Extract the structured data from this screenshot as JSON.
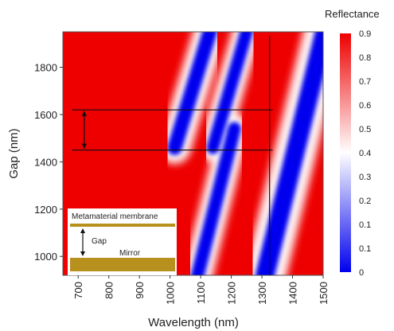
{
  "chart_data": {
    "type": "heatmap",
    "title": "",
    "xlabel": "Wavelength (nm)",
    "ylabel": "Gap (nm)",
    "xlim": [
      650,
      1500
    ],
    "ylim": [
      920,
      1950
    ],
    "x_ticks": [
      "700",
      "800",
      "900",
      "1000",
      "1100",
      "1200",
      "1300",
      "1400",
      "1500"
    ],
    "x_tick_values": [
      700,
      800,
      900,
      1000,
      1100,
      1200,
      1300,
      1400,
      1500
    ],
    "y_ticks": [
      "1000",
      "1200",
      "1400",
      "1600",
      "1800"
    ],
    "y_tick_values": [
      1000,
      1200,
      1400,
      1600,
      1800
    ],
    "colorbar": {
      "title": "Reflectance",
      "labels": [
        "0.9",
        "0.8",
        "0.7",
        "0.6",
        "0.5",
        "0.4",
        "0.3",
        "0.2",
        "0.1",
        "0.1",
        "0"
      ],
      "colors": [
        "#0000ee",
        "#ffffff",
        "#ee0000"
      ],
      "min": 0,
      "max": 0.9
    },
    "colormap": [
      "#0000ee",
      "#ffffff",
      "#ee0000"
    ],
    "resonance_bands": [
      {
        "name": "blue band 1",
        "gap_low": 1460,
        "wavelength_low": 1015,
        "gap_high": 1950,
        "wavelength_high": 1130,
        "width_nm": 48
      },
      {
        "name": "blue band 2",
        "gap_low": 1460,
        "wavelength_low": 1140,
        "gap_high": 1950,
        "wavelength_high": 1250,
        "width_nm": 42
      },
      {
        "name": "blue band 3",
        "gap_low": 920,
        "wavelength_low": 1090,
        "gap_high": 1540,
        "wavelength_high": 1210,
        "width_nm": 44
      },
      {
        "name": "blue band 4",
        "gap_low": 920,
        "wavelength_low": 1310,
        "gap_high": 1950,
        "wavelength_high": 1505,
        "width_nm": 62
      }
    ],
    "annotations": {
      "horizontal_lines_gap": [
        1620,
        1450
      ],
      "vertical_line_wavelength": 1325,
      "arrow_between_gaps": [
        1620,
        1450
      ]
    },
    "inset": {
      "membrane_label": "Metamaterial membrane",
      "gap_label": "Gap",
      "mirror_label": "Mirror",
      "color": "#b8901e"
    }
  }
}
